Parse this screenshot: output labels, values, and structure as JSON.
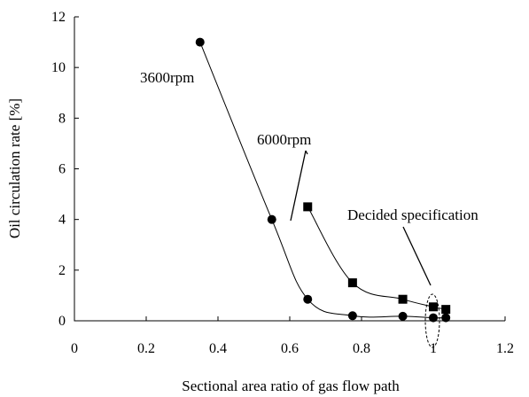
{
  "chart_data": {
    "type": "line",
    "xlabel": "Sectional area ratio of gas flow path",
    "ylabel": "Oil circulation rate [%]",
    "xlim": [
      0,
      1.2
    ],
    "ylim": [
      0,
      12
    ],
    "x_ticks": [
      "0",
      "0.2",
      "0.4",
      "0.6",
      "0.8",
      "1",
      "1.2"
    ],
    "y_ticks": [
      "0",
      "2",
      "4",
      "6",
      "8",
      "10",
      "12"
    ],
    "grid": false,
    "series": [
      {
        "name": "3600rpm",
        "marker": "circle",
        "x": [
          0.35,
          0.55,
          0.65,
          0.775,
          0.915,
          1.0,
          1.035
        ],
        "y": [
          11.0,
          4.0,
          0.85,
          0.2,
          0.18,
          0.12,
          0.12
        ]
      },
      {
        "name": "6000rpm",
        "marker": "square",
        "x": [
          0.65,
          0.775,
          0.915,
          1.0,
          1.035
        ],
        "y": [
          4.5,
          1.5,
          0.85,
          0.55,
          0.45
        ]
      }
    ],
    "annotations": {
      "decided_specification": "Decided specification"
    },
    "colors": {
      "ink": "#000000",
      "background": "#ffffff"
    }
  }
}
